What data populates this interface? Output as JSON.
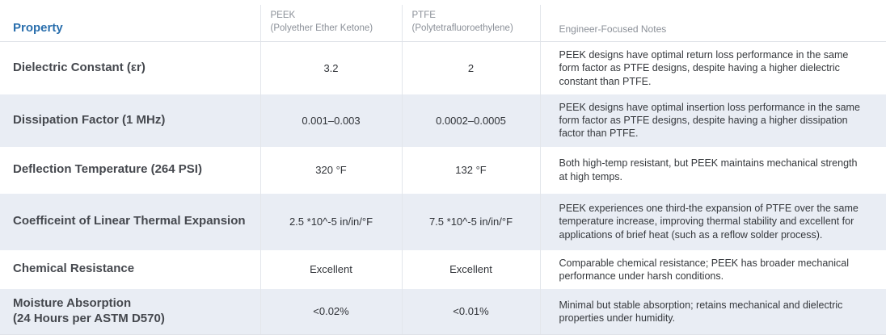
{
  "colors": {
    "accent_blue": "#2a6fad",
    "row_alternate": "#e9edf4",
    "border": "#e3e6eb",
    "header_gray": "#8b9098",
    "property_text": "#45484e",
    "body_text": "#35383c"
  },
  "table": {
    "header": {
      "property": "Property",
      "peek_name": "PEEK",
      "peek_sub": "(Polyether Ether Ketone)",
      "ptfe_name": "PTFE",
      "ptfe_sub": "(Polytetrafluoroethylene)",
      "notes": "Engineer-Focused Notes"
    },
    "rows": [
      {
        "property": "Dielectric Constant (εr)",
        "peek": "3.2",
        "ptfe": "2",
        "notes": "PEEK designs have optimal return loss performance in the same form factor as PTFE designs, despite having a higher dielectric constant than PTFE."
      },
      {
        "property": "Dissipation Factor (1 MHz)",
        "peek": "0.001–0.003",
        "ptfe": "0.0002–0.0005",
        "notes": "PEEK designs have optimal insertion loss performance in the same form factor as PTFE designs, despite having a higher dissipation factor than PTFE."
      },
      {
        "property": "Deflection Temperature (264 PSI)",
        "peek": "320 °F",
        "ptfe": "132 °F",
        "notes": "Both high-temp resistant, but PEEK maintains mechanical strength at high temps."
      },
      {
        "property": "Coefficeint of Linear Thermal Expansion",
        "peek": "2.5 *10^-5 in/in/°F",
        "ptfe": "7.5 *10^-5 in/in/°F",
        "notes": "PEEK experiences one third-the expansion of PTFE over the same temperature increase, improving thermal stability and excellent for applications of brief heat (such as a reflow solder process)."
      },
      {
        "property": "Chemical Resistance",
        "peek": "Excellent",
        "ptfe": "Excellent",
        "notes": "Comparable chemical resistance; PEEK has broader mechanical performance under harsh conditions."
      },
      {
        "property": "Moisture Absorption\n(24 Hours per ASTM D570)",
        "peek": "<0.02%",
        "ptfe": "<0.01%",
        "notes": "Minimal but stable absorption; retains mechanical and dielectric properties under humidity."
      }
    ]
  },
  "chart_data": {
    "type": "table",
    "title": "PEEK vs PTFE material property comparison",
    "columns": [
      "Property",
      "PEEK (Polyether Ether Ketone)",
      "PTFE (Polytetrafluoroethylene)",
      "Engineer-Focused Notes"
    ],
    "rows": [
      [
        "Dielectric Constant (εr)",
        "3.2",
        "2",
        "PEEK designs have optimal return loss performance in the same form factor as PTFE designs, despite having a higher dielectric constant than PTFE."
      ],
      [
        "Dissipation Factor (1 MHz)",
        "0.001–0.003",
        "0.0002–0.0005",
        "PEEK designs have optimal insertion loss performance in the same form factor as PTFE designs, despite having a higher dissipation factor than PTFE."
      ],
      [
        "Deflection Temperature (264 PSI)",
        "320 °F",
        "132 °F",
        "Both high-temp resistant, but PEEK maintains mechanical strength at high temps."
      ],
      [
        "Coefficeint of Linear Thermal Expansion",
        "2.5 *10^-5 in/in/°F",
        "7.5 *10^-5 in/in/°F",
        "PEEK experiences one third-the expansion of PTFE over the same temperature increase, improving thermal stability and excellent for applications of brief heat (such as a reflow solder process)."
      ],
      [
        "Chemical Resistance",
        "Excellent",
        "Excellent",
        "Comparable chemical resistance; PEEK has broader mechanical performance under harsh conditions."
      ],
      [
        "Moisture Absorption (24 Hours per ASTM D570)",
        "<0.02%",
        "<0.01%",
        "Minimal but stable absorption; retains mechanical and dielectric properties under humidity."
      ]
    ],
    "layout": {
      "alternating_row_shading": true,
      "shaded_rows": [
        1,
        3,
        5
      ],
      "column_dividers": true
    }
  }
}
